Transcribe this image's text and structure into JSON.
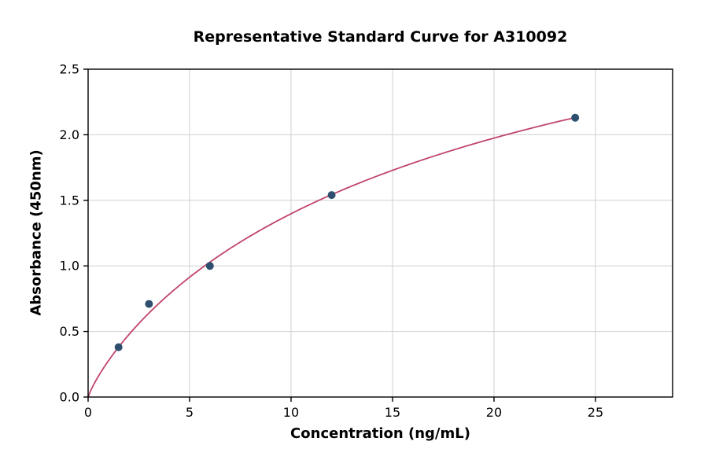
{
  "figure": {
    "title": "Representative Standard Curve for A310092",
    "xlabel": "Concentration (ng/mL)",
    "ylabel": "Absorbance (450nm)"
  },
  "chart_data": {
    "type": "scatter",
    "title": "Representative Standard Curve for A310092",
    "xlabel": "Concentration (ng/mL)",
    "ylabel": "Absorbance (450nm)",
    "xlim": [
      0,
      28.8
    ],
    "ylim": [
      0,
      2.5
    ],
    "x_ticks": [
      0,
      5,
      10,
      15,
      20,
      25
    ],
    "x_tick_labels": [
      "0",
      "5",
      "10",
      "15",
      "20",
      "25"
    ],
    "y_ticks": [
      0,
      0.5,
      1.0,
      1.5,
      2.0,
      2.5
    ],
    "y_tick_labels": [
      "0.0",
      "0.5",
      "1.0",
      "1.5",
      "2.0",
      "2.5"
    ],
    "grid": true,
    "legend": "none",
    "points": [
      {
        "x": 1.5,
        "y": 0.38
      },
      {
        "x": 3,
        "y": 0.71
      },
      {
        "x": 6,
        "y": 1.0
      },
      {
        "x": 12,
        "y": 1.54
      },
      {
        "x": 24,
        "y": 2.13
      }
    ],
    "fit_curve": {
      "model": "4PL",
      "params": {
        "a": 0,
        "d": 4.0,
        "c": 20.6,
        "b": 0.86
      },
      "x_range": [
        0,
        24
      ]
    },
    "colors": {
      "curve": "#c0456b",
      "points": "#2e4f6e",
      "grid": "#cfcfcf",
      "axis": "#000000",
      "background": "#ffffff"
    }
  }
}
